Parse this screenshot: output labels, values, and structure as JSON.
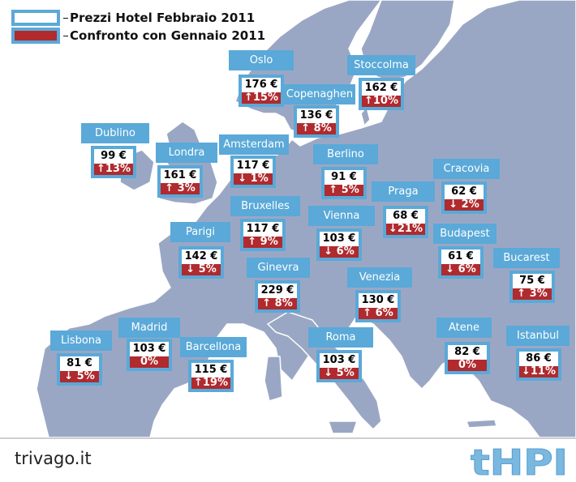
{
  "legend": {
    "price_label": "Prezzi Hotel Febbraio 2011",
    "change_label": "Confronto con Gennaio 2011"
  },
  "colors": {
    "land": "#9aa7c4",
    "coast": "#ffffff",
    "label_bg": "#5aa9d8",
    "change_bg": "#b02a2e",
    "logo": "#7ab8e0"
  },
  "cities": [
    {
      "name": "Oslo",
      "price": "176 €",
      "change": "↑15%"
    },
    {
      "name": "Stoccolma",
      "price": "162 €",
      "change": "↑10%"
    },
    {
      "name": "Copenaghen",
      "price": "136 €",
      "change": "↑ 8%"
    },
    {
      "name": "Dublino",
      "price": "99 €",
      "change": "↑13%"
    },
    {
      "name": "Londra",
      "price": "161 €",
      "change": "↑ 3%"
    },
    {
      "name": "Amsterdam",
      "price": "117 €",
      "change": "↓ 1%"
    },
    {
      "name": "Berlino",
      "price": "91 €",
      "change": "↑ 5%"
    },
    {
      "name": "Cracovia",
      "price": "62 €",
      "change": "↓ 2%"
    },
    {
      "name": "Praga",
      "price": "68 €",
      "change": "↓21%"
    },
    {
      "name": "Bruxelles",
      "price": "117 €",
      "change": "↑ 9%"
    },
    {
      "name": "Vienna",
      "price": "103 €",
      "change": "↓ 6%"
    },
    {
      "name": "Budapest",
      "price": "61 €",
      "change": "↓ 6%"
    },
    {
      "name": "Parigi",
      "price": "142 €",
      "change": "↓ 5%"
    },
    {
      "name": "Bucarest",
      "price": "75 €",
      "change": "↑ 3%"
    },
    {
      "name": "Ginevra",
      "price": "229 €",
      "change": "↑ 8%"
    },
    {
      "name": "Venezia",
      "price": "130 €",
      "change": "↑ 6%"
    },
    {
      "name": "Madrid",
      "price": "103 €",
      "change": "0%"
    },
    {
      "name": "Lisbona",
      "price": "81 €",
      "change": "↓ 5%"
    },
    {
      "name": "Barcellona",
      "price": "115 €",
      "change": "↑19%"
    },
    {
      "name": "Roma",
      "price": "103 €",
      "change": "↓ 5%"
    },
    {
      "name": "Atene",
      "price": "82 €",
      "change": "0%"
    },
    {
      "name": "Istanbul",
      "price": "86 €",
      "change": "↓11%"
    }
  ],
  "footer": {
    "brand": "trivago.it",
    "logo": "tHPI"
  }
}
